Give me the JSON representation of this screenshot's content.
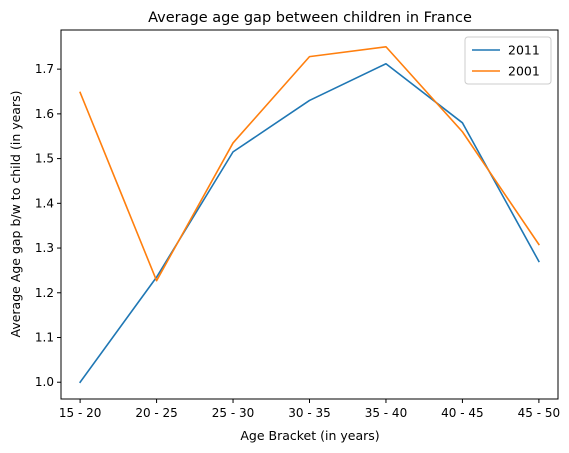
{
  "chart_data": {
    "type": "line",
    "title": "Average age gap between children in France",
    "xlabel": "Age Bracket (in years)",
    "ylabel": "Average Age gap b/w to child (in years)",
    "categories": [
      "15 - 20",
      "20 - 25",
      "25 - 30",
      "30 - 35",
      "35 - 40",
      "40 - 45",
      "45 - 50"
    ],
    "series": [
      {
        "name": "2011",
        "color": "#1f77b4",
        "values": [
          1.0,
          1.235,
          1.515,
          1.63,
          1.712,
          1.58,
          1.27
        ]
      },
      {
        "name": "2001",
        "color": "#ff7f0e",
        "values": [
          1.648,
          1.227,
          1.535,
          1.728,
          1.75,
          1.56,
          1.308
        ]
      }
    ],
    "ylim": [
      0.9625,
      1.7875
    ],
    "yticks": [
      1.0,
      1.1,
      1.2,
      1.3,
      1.4,
      1.5,
      1.6,
      1.7
    ],
    "ytick_labels": [
      "1.0",
      "1.1",
      "1.2",
      "1.3",
      "1.4",
      "1.5",
      "1.6",
      "1.7"
    ],
    "grid": false,
    "legend_position": "top-right"
  }
}
